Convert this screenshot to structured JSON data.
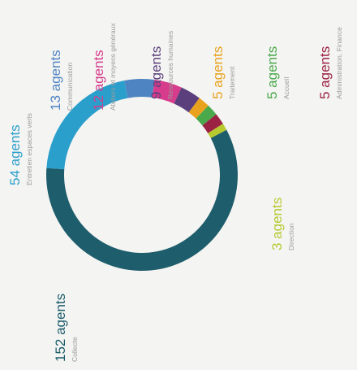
{
  "chart_data": {
    "type": "donut",
    "categories": [
      "Collecte",
      "Entretien espaces verts",
      "Communication",
      "Ateliers et moyens généraux",
      "Ressources humaines",
      "Traitement",
      "Accueil",
      "Administration, Finance",
      "Direction"
    ],
    "values": [
      152,
      54,
      13,
      12,
      9,
      5,
      5,
      5,
      3
    ],
    "value_labels": [
      "152 agents",
      "54 agents",
      "13 agents",
      "12 agents",
      "9 agents",
      "5 agents",
      "5 agents",
      "5 agents",
      "3 agents"
    ],
    "colors": [
      "#1d5d6c",
      "#2b9fcb",
      "#4f84c2",
      "#d73c8c",
      "#5b3f7c",
      "#e9a21d",
      "#4aa94b",
      "#9b2242",
      "#b7c92f"
    ]
  }
}
